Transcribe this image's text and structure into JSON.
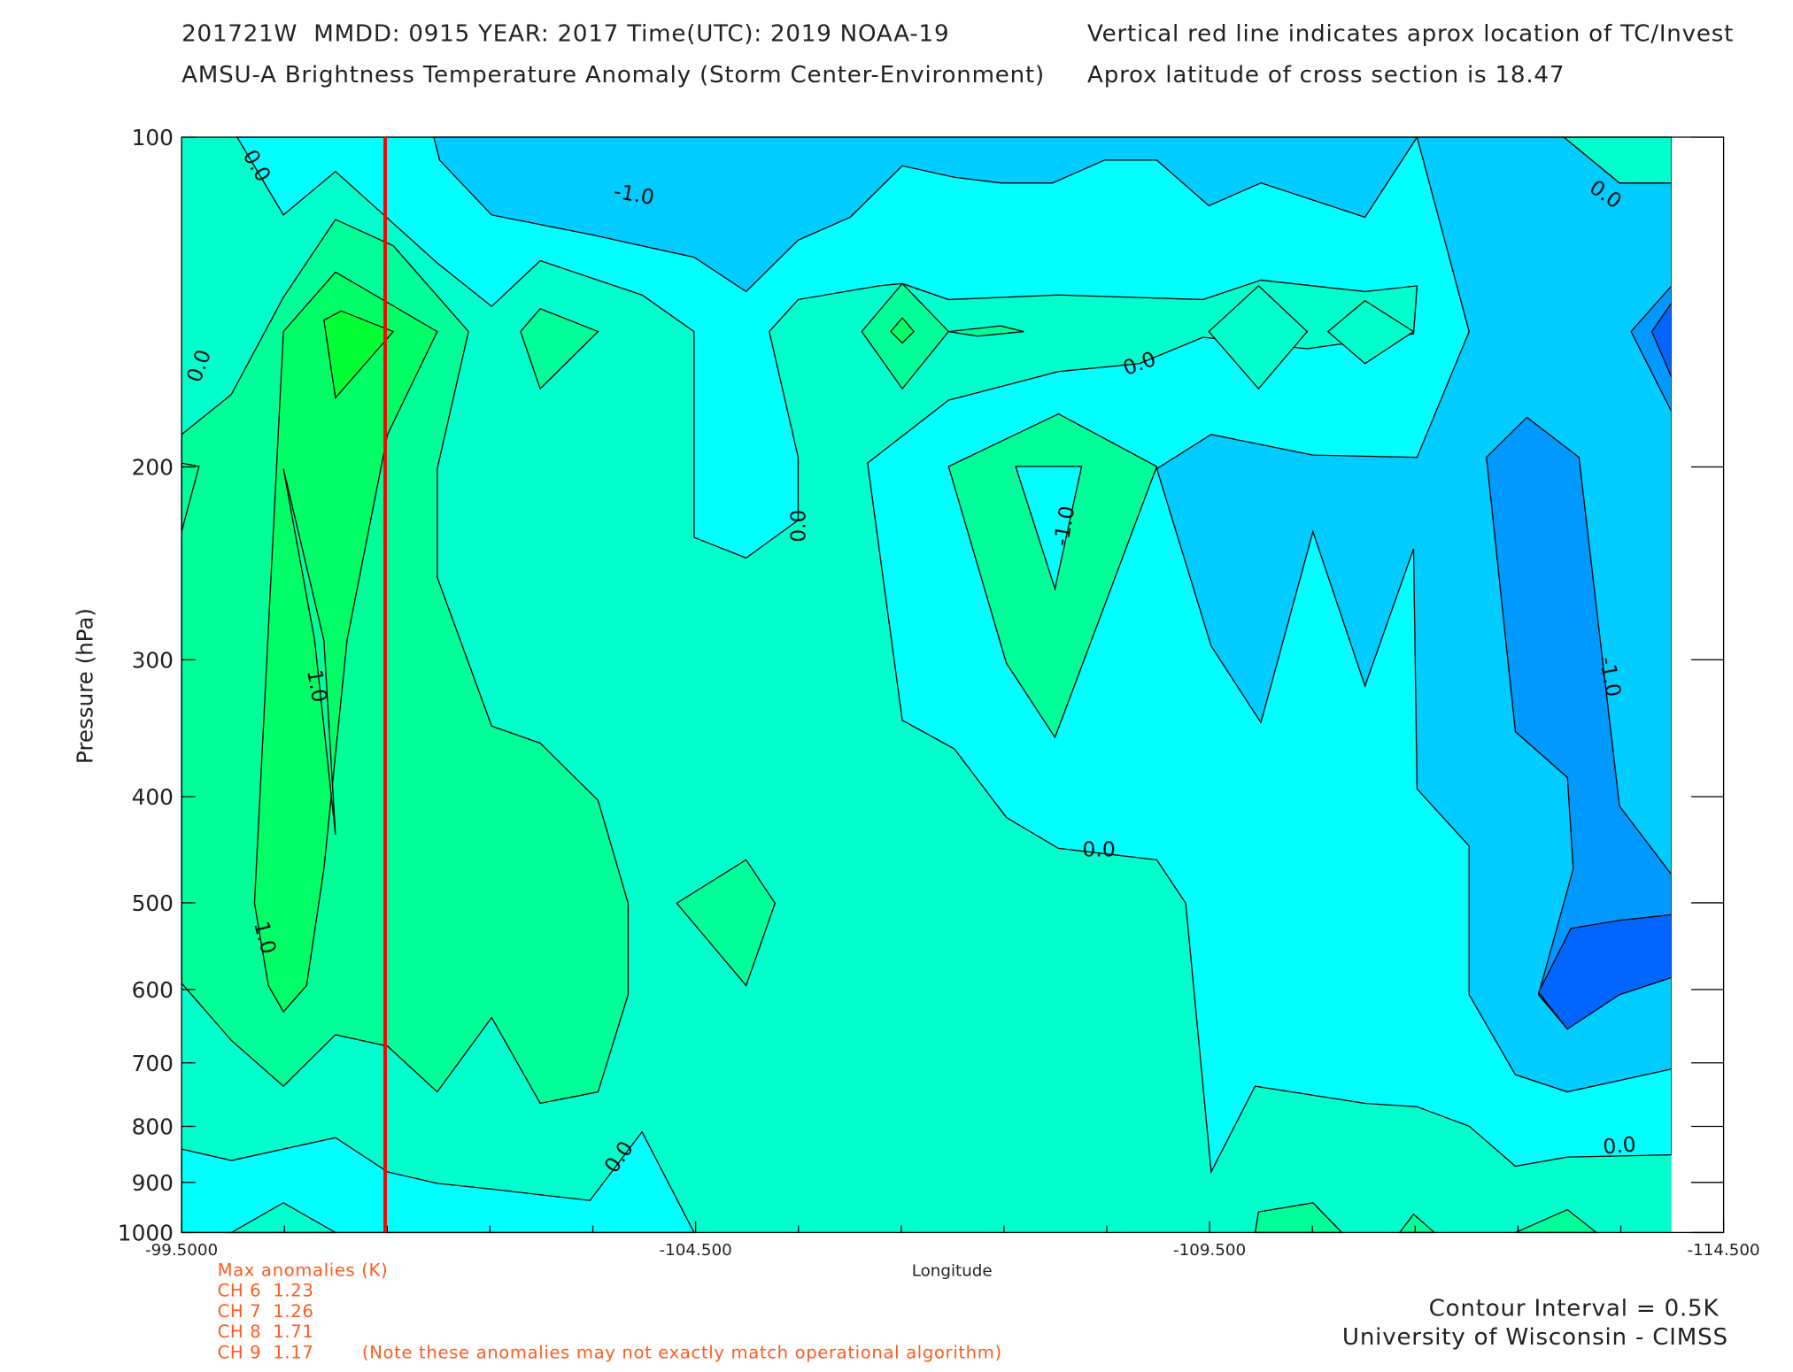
{
  "chart_data": {
    "type": "contour",
    "header": [
      "201721W  MMDD: 0915 YEAR: 2017 Time(UTC): 2019 NOAA-19",
      "AMSU-A Brightness Temperature Anomaly (Storm Center-Environment)",
      "Vertical red line indicates aprox location of TC/Invest",
      "Aprox latitude of cross section is 18.47"
    ],
    "xlabel": "Longitude",
    "ylabel": "Pressure (hPa)",
    "xlim": [
      -99.5,
      -114.5
    ],
    "xticks": [
      {
        "value": -99.5,
        "label": "-99.5000"
      },
      {
        "value": -104.5,
        "label": "-104.500"
      },
      {
        "value": -109.5,
        "label": "-109.500"
      },
      {
        "value": -114.5,
        "label": "-114.500"
      }
    ],
    "ylim": [
      100,
      1000
    ],
    "yticks": [
      100,
      200,
      300,
      400,
      500,
      600,
      700,
      800,
      900,
      1000
    ],
    "y_log": true,
    "y_inverted": true,
    "tc_longitude": -101.48,
    "tc_color": "#ff0000",
    "contour_labels": [
      {
        "value": 0,
        "label": "0.0"
      },
      {
        "value": -1,
        "label": "-1.0"
      },
      {
        "value": 0,
        "label": "0.0"
      },
      {
        "value": 0,
        "label": "0.0"
      },
      {
        "value": 0,
        "label": "0.0"
      },
      {
        "value": 0,
        "label": "0.0"
      },
      {
        "value": -1,
        "label": "-1.0"
      },
      {
        "value": 1,
        "label": "1.0"
      },
      {
        "value": -1,
        "label": "-1.0"
      },
      {
        "value": 0,
        "label": "0.0"
      },
      {
        "value": 1,
        "label": "1.0"
      },
      {
        "value": 0,
        "label": "0.0"
      },
      {
        "value": 0,
        "label": "0.0"
      }
    ],
    "max_anomalies": {
      "title": "Max anomalies (K)",
      "channels": [
        {
          "name": "CH 6",
          "value": 1.23
        },
        {
          "name": "CH 7",
          "value": 1.26
        },
        {
          "name": "CH 8",
          "value": 1.71
        },
        {
          "name": "CH 9",
          "value": 1.17
        }
      ],
      "note": "(Note these anomalies may not exactly match operational algorithm)"
    },
    "contour_interval": "Contour Interval = 0.5K",
    "credit": "University of Wisconsin - CIMSS"
  }
}
